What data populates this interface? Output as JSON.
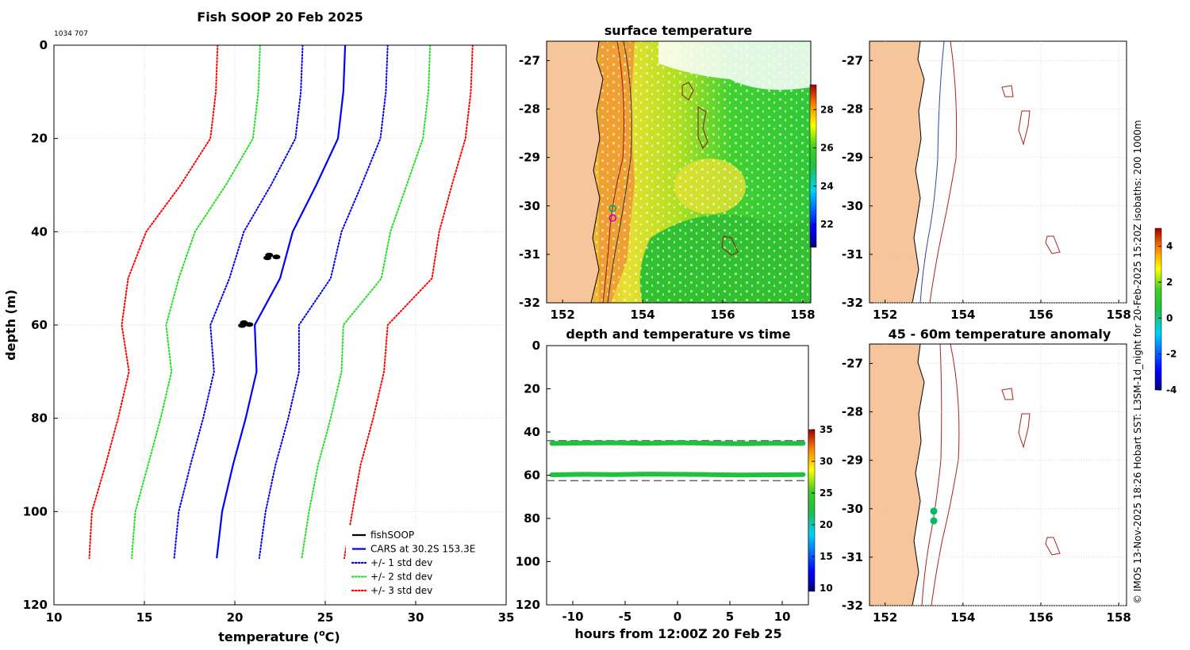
{
  "figure": {
    "main_title": "Fish SOOP 20 Feb 2025",
    "id_text": "1034 707",
    "credit": "© IMOS 13-Nov-2025 18:26 Hobart SST: L3SM-1d_night for 20-Feb-2025 15:20Z isobaths: 200  1000m"
  },
  "chart_data": [
    {
      "id": "profile",
      "type": "line",
      "title": "",
      "xlabel": "temperature (oC)",
      "xlabel_main": "temperature (",
      "xlabel_sup": "o",
      "xlabel_tail": "C)",
      "ylabel": "depth (m)",
      "xlim": [
        10,
        35
      ],
      "ylim": [
        0,
        120
      ],
      "y_reversed": true,
      "grid": true,
      "xticks": [
        10,
        15,
        20,
        25,
        30,
        35
      ],
      "yticks": [
        0,
        20,
        40,
        60,
        80,
        100,
        120
      ],
      "depth": [
        0,
        10,
        20,
        30,
        40,
        50,
        60,
        70,
        80,
        90,
        100,
        110
      ],
      "cars_mean": [
        26.1,
        26.0,
        25.7,
        24.5,
        23.2,
        22.5,
        21.1,
        21.2,
        20.6,
        19.9,
        19.3,
        19.0
      ],
      "std_dev": [
        2.35,
        2.35,
        2.35,
        2.5,
        2.7,
        2.8,
        2.45,
        2.35,
        2.35,
        2.35,
        2.4,
        2.35
      ],
      "series": [
        {
          "name": "+/- 3 std dev",
          "color": "#ff0000",
          "style": "dotted",
          "k": 3
        },
        {
          "name": "+/- 2 std dev",
          "color": "#22dd22",
          "style": "dotted",
          "k": 2
        },
        {
          "name": "+/- 1 std dev",
          "color": "#0000ee",
          "style": "dotted",
          "k": 1
        },
        {
          "name": "CARS at 30.2S 153.3E",
          "color": "#0000ff",
          "style": "solid",
          "k": 0
        },
        {
          "name": "fishSOOP",
          "color": "#000000",
          "style": "points",
          "points": [
            [
              21.9,
              45.0
            ],
            [
              22.3,
              45.4
            ],
            [
              21.8,
              45.6
            ],
            [
              20.5,
              59.5
            ],
            [
              20.8,
              59.9
            ],
            [
              20.4,
              60.1
            ]
          ]
        }
      ],
      "legend": [
        "fishSOOP",
        "CARS at 30.2S 153.3E",
        "+/- 1 std dev",
        "+/- 2 std dev",
        "+/- 3 std dev"
      ],
      "legend_colors": [
        "#000000",
        "#0000ff",
        "#0000ee",
        "#22dd22",
        "#ff0000"
      ],
      "legend_styles": [
        "solid",
        "solid",
        "dotted",
        "dotted",
        "dotted"
      ],
      "legend_position": "bottom-right"
    },
    {
      "id": "sst_map",
      "type": "heatmap",
      "title": "surface temperature",
      "xlim": [
        151.6,
        158.2
      ],
      "ylim": [
        -32,
        -26.6
      ],
      "xticks": [
        152,
        154,
        156,
        158
      ],
      "yticks": [
        -27,
        -28,
        -29,
        -30,
        -31,
        -32
      ],
      "colorbar_range": [
        20.8,
        29.3
      ],
      "colorbar_ticks": [
        22,
        24,
        26,
        28
      ],
      "markers": [
        {
          "lon": 153.25,
          "lat": -30.05,
          "color": "#00aa66"
        },
        {
          "lon": 153.25,
          "lat": -30.25,
          "color": "#cc00cc"
        }
      ]
    },
    {
      "id": "anomaly_map_top",
      "type": "heatmap",
      "title": "",
      "xlim": [
        151.6,
        158.2
      ],
      "ylim": [
        -32,
        -26.6
      ],
      "xticks": [
        152,
        154,
        156,
        158
      ],
      "yticks": [
        -27,
        -28,
        -29,
        -30,
        -31,
        -32
      ],
      "colorbar_range": [
        -4,
        5
      ],
      "colorbar_ticks": [
        -4,
        -2,
        0,
        2,
        4
      ]
    },
    {
      "id": "depth_time",
      "type": "scatter",
      "title": "depth and temperature vs time",
      "xlabel": "hours from 12:00Z 20 Feb 25",
      "xlim": [
        -12.5,
        12.5
      ],
      "ylim": [
        0,
        120
      ],
      "y_reversed": true,
      "xticks": [
        -10,
        -5,
        0,
        5,
        10
      ],
      "yticks": [
        0,
        20,
        40,
        60,
        80,
        100,
        120
      ],
      "depth_upper": [
        45.3,
        45.1,
        45.0,
        45.2,
        45.0,
        45.2,
        45.4,
        45.2,
        45.3
      ],
      "depth_lower": [
        59.8,
        59.6,
        59.7,
        59.5,
        59.6,
        59.7,
        59.9,
        59.8,
        59.7
      ],
      "time_hours": [
        -12,
        -9,
        -6,
        -3,
        0,
        3,
        6,
        9,
        12
      ],
      "dashed_lines": [
        44.0,
        62.5
      ],
      "colorbar_range": [
        9.5,
        35
      ],
      "colorbar_ticks": [
        10,
        15,
        20,
        25,
        30,
        35
      ]
    },
    {
      "id": "anomaly_map_bottom",
      "type": "scatter",
      "title": "45 - 60m temperature anomaly",
      "xlim": [
        151.6,
        158.2
      ],
      "ylim": [
        -32,
        -26.6
      ],
      "xticks": [
        152,
        154,
        156,
        158
      ],
      "yticks": [
        -27,
        -28,
        -29,
        -30,
        -31,
        -32
      ],
      "markers": [
        {
          "lon": 153.25,
          "lat": -30.05,
          "color": "#00bb66"
        },
        {
          "lon": 153.25,
          "lat": -30.25,
          "color": "#00bb66"
        }
      ]
    }
  ]
}
